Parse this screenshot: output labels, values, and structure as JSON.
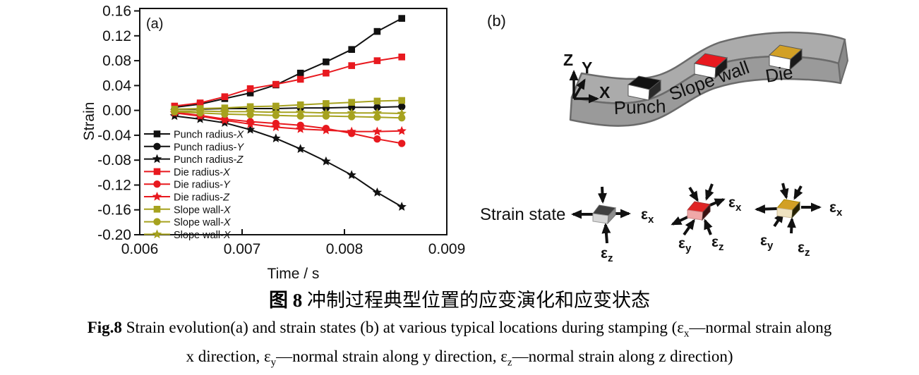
{
  "panel_a": {
    "tag": "(a)"
  },
  "chart_data": {
    "type": "line",
    "title": "",
    "xlabel": "Time / s",
    "ylabel": "Strain",
    "xlim": [
      0.006,
      0.009
    ],
    "ylim": [
      -0.2,
      0.16
    ],
    "x_ticks": [
      "0.006",
      "0.007",
      "0.008",
      "0.009"
    ],
    "x_tick_values": [
      0.006,
      0.007,
      0.008,
      0.009
    ],
    "y_ticks": [
      "0.16",
      "0.12",
      "0.08",
      "0.04",
      "0.00",
      "-0.04",
      "-0.08",
      "-0.12",
      "-0.16",
      "-0.20"
    ],
    "y_tick_values": [
      0.16,
      0.12,
      0.08,
      0.04,
      0.0,
      -0.04,
      -0.08,
      -0.12,
      -0.16,
      -0.2
    ],
    "grid": false,
    "legend_position": "lower-left-inside",
    "x": [
      0.00634,
      0.00659,
      0.00683,
      0.00708,
      0.00733,
      0.00757,
      0.00782,
      0.00807,
      0.00832,
      0.00856
    ],
    "series": [
      {
        "name": "Punch radius",
        "axis": "X",
        "marker": "square",
        "color": "#111111",
        "values": [
          0.005,
          0.01,
          0.019,
          0.028,
          0.041,
          0.06,
          0.078,
          0.098,
          0.127,
          0.148
        ]
      },
      {
        "name": "Punch radius",
        "axis": "Y",
        "marker": "circle",
        "color": "#111111",
        "values": [
          0.002,
          0.002,
          0.003,
          0.003,
          0.003,
          0.004,
          0.004,
          0.005,
          0.005,
          0.006
        ]
      },
      {
        "name": "Punch radius",
        "axis": "Z",
        "marker": "star",
        "color": "#111111",
        "values": [
          -0.009,
          -0.014,
          -0.02,
          -0.031,
          -0.045,
          -0.062,
          -0.082,
          -0.104,
          -0.132,
          -0.155
        ]
      },
      {
        "name": "Die radius",
        "axis": "X",
        "marker": "square",
        "color": "#e8191f",
        "values": [
          0.007,
          0.012,
          0.022,
          0.035,
          0.042,
          0.05,
          0.06,
          0.072,
          0.08,
          0.086
        ]
      },
      {
        "name": "Die radius",
        "axis": "Y",
        "marker": "circle",
        "color": "#e8191f",
        "values": [
          -0.003,
          -0.008,
          -0.014,
          -0.018,
          -0.021,
          -0.024,
          -0.029,
          -0.037,
          -0.046,
          -0.053
        ]
      },
      {
        "name": "Die radius",
        "axis": "Z",
        "marker": "star",
        "color": "#e8191f",
        "values": [
          -0.004,
          -0.009,
          -0.016,
          -0.022,
          -0.027,
          -0.03,
          -0.032,
          -0.034,
          -0.034,
          -0.033
        ]
      },
      {
        "name": "Slope wall",
        "axis": "X",
        "marker": "square",
        "color": "#a6a21f",
        "values": [
          0.002,
          0.003,
          0.004,
          0.006,
          0.007,
          0.009,
          0.011,
          0.013,
          0.015,
          0.016
        ]
      },
      {
        "name": "Slope wall",
        "axis": "X",
        "marker": "circle",
        "color": "#a6a21f",
        "values": [
          -0.002,
          -0.004,
          -0.006,
          -0.007,
          -0.008,
          -0.009,
          -0.009,
          -0.01,
          -0.011,
          -0.012
        ]
      },
      {
        "name": "Slope wall",
        "axis": "X",
        "marker": "star",
        "color": "#a6a21f",
        "values": [
          -0.001,
          -0.001,
          -0.002,
          -0.002,
          -0.003,
          -0.003,
          -0.004,
          -0.004,
          -0.004,
          -0.005
        ]
      }
    ]
  },
  "panel_b": {
    "tag": "(b)",
    "axes": {
      "x": "X",
      "y": "Y",
      "z": "Z"
    },
    "sheet_labels": {
      "punch": "Punch",
      "slope": "Slope wall",
      "die": "Die"
    },
    "marker_colors": {
      "punch": "#111111",
      "slope_wall": "#e8191f",
      "die": "#d2a025"
    },
    "strain_state": {
      "title": "Strain state",
      "eps": "ε",
      "x": "x",
      "y": "y",
      "z": "z"
    }
  },
  "caption_cn": {
    "fig": "图 8",
    "text": " 冲制过程典型位置的应变演化和应变状态"
  },
  "caption_en": {
    "fig": "Fig.8",
    "l1a": " Strain evolution(a) and strain states (b) at various typical locations during stamping (",
    "eps": "ε",
    "x": "x",
    "l1b": "—normal strain along",
    "l2a": "x direction, ",
    "y": "y",
    "l2b": "—normal strain along y direction, ",
    "z": "z",
    "l2c": "—normal strain along z direction)"
  }
}
